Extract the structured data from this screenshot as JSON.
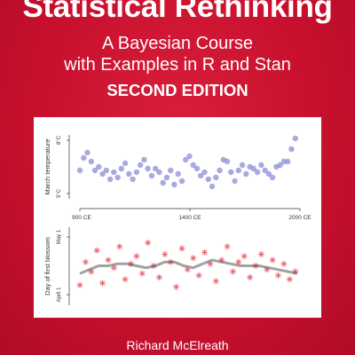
{
  "book": {
    "title": "Statistical Rethinking",
    "subtitle_line1": "A Bayesian Course",
    "subtitle_line2": "with Examples in R and Stan",
    "edition": "SECOND EDITION",
    "author": "Richard McElreath"
  },
  "colors": {
    "background": "#c8102e",
    "temperature_points": "#8b8ed6",
    "blossom_points": "#e8505a",
    "trend": "#555555"
  },
  "chart_data": [
    {
      "type": "scatter",
      "ylabel": "March temperature",
      "ytick_labels": [
        "5°C",
        "8°C"
      ],
      "ylim": [
        5,
        8
      ],
      "x": [
        850,
        870,
        890,
        910,
        930,
        950,
        970,
        990,
        1010,
        1030,
        1050,
        1070,
        1090,
        1110,
        1130,
        1150,
        1170,
        1190,
        1210,
        1230,
        1250,
        1270,
        1290,
        1310,
        1330,
        1350,
        1370,
        1390,
        1410,
        1430,
        1450,
        1470,
        1490,
        1510,
        1530,
        1550,
        1570,
        1590,
        1610,
        1630,
        1650,
        1670,
        1690,
        1710,
        1730,
        1750,
        1770,
        1790,
        1810,
        1830,
        1850,
        1870,
        1890,
        1910,
        1930,
        1950,
        1970,
        1990
      ],
      "y": [
        6.3,
        7.0,
        7.3,
        6.8,
        6.3,
        6.5,
        6.1,
        6.3,
        5.8,
        6.2,
        5.9,
        6.4,
        6.7,
        6.1,
        5.8,
        6.2,
        6.6,
        6.9,
        6.4,
        6.0,
        6.4,
        6.2,
        5.6,
        5.9,
        6.3,
        5.5,
        6.1,
        5.7,
        6.9,
        7.1,
        6.6,
        6.4,
        6.0,
        6.2,
        5.8,
        5.4,
        5.9,
        6.3,
        6.9,
        6.8,
        6.2,
        5.7,
        6.3,
        6.6,
        6.1,
        6.5,
        6.4,
        6.2,
        6.6,
        6.3,
        6.1,
        5.9,
        6.5,
        6.6,
        6.8,
        6.8,
        7.5,
        8.1
      ]
    },
    {
      "type": "scatter",
      "xlabel_ticks": [
        "900 CE",
        "1400 CE",
        "2000 CE"
      ],
      "xlim": [
        850,
        2015
      ],
      "ylabel": "Day of first blossom",
      "ytick_labels": [
        "April 1",
        "May 1"
      ],
      "ylim": [
        90,
        122
      ],
      "x": [
        850,
        880,
        910,
        940,
        970,
        1000,
        1030,
        1060,
        1090,
        1120,
        1150,
        1180,
        1210,
        1240,
        1270,
        1300,
        1330,
        1360,
        1390,
        1420,
        1450,
        1480,
        1510,
        1540,
        1570,
        1600,
        1630,
        1660,
        1690,
        1720,
        1750,
        1780,
        1810,
        1840,
        1870,
        1900,
        1930,
        1960,
        1990
      ],
      "y": [
        96,
        108,
        103,
        114,
        97,
        109,
        105,
        116,
        99,
        107,
        111,
        102,
        118,
        106,
        100,
        112,
        108,
        95,
        115,
        104,
        110,
        101,
        113,
        107,
        98,
        109,
        116,
        103,
        108,
        111,
        100,
        106,
        112,
        104,
        109,
        101,
        107,
        99,
        103
      ],
      "trend_x": [
        850,
        900,
        950,
        1000,
        1050,
        1100,
        1150,
        1200,
        1250,
        1300,
        1350,
        1400,
        1450,
        1500,
        1550,
        1600,
        1650,
        1700,
        1750,
        1800,
        1850,
        1900,
        1950,
        2000
      ],
      "trend_y": [
        102,
        104,
        106,
        106,
        107,
        107,
        106,
        105,
        106,
        108,
        108,
        106,
        105,
        107,
        109,
        108,
        107,
        106,
        106,
        106,
        105,
        104,
        103,
        102
      ]
    }
  ]
}
